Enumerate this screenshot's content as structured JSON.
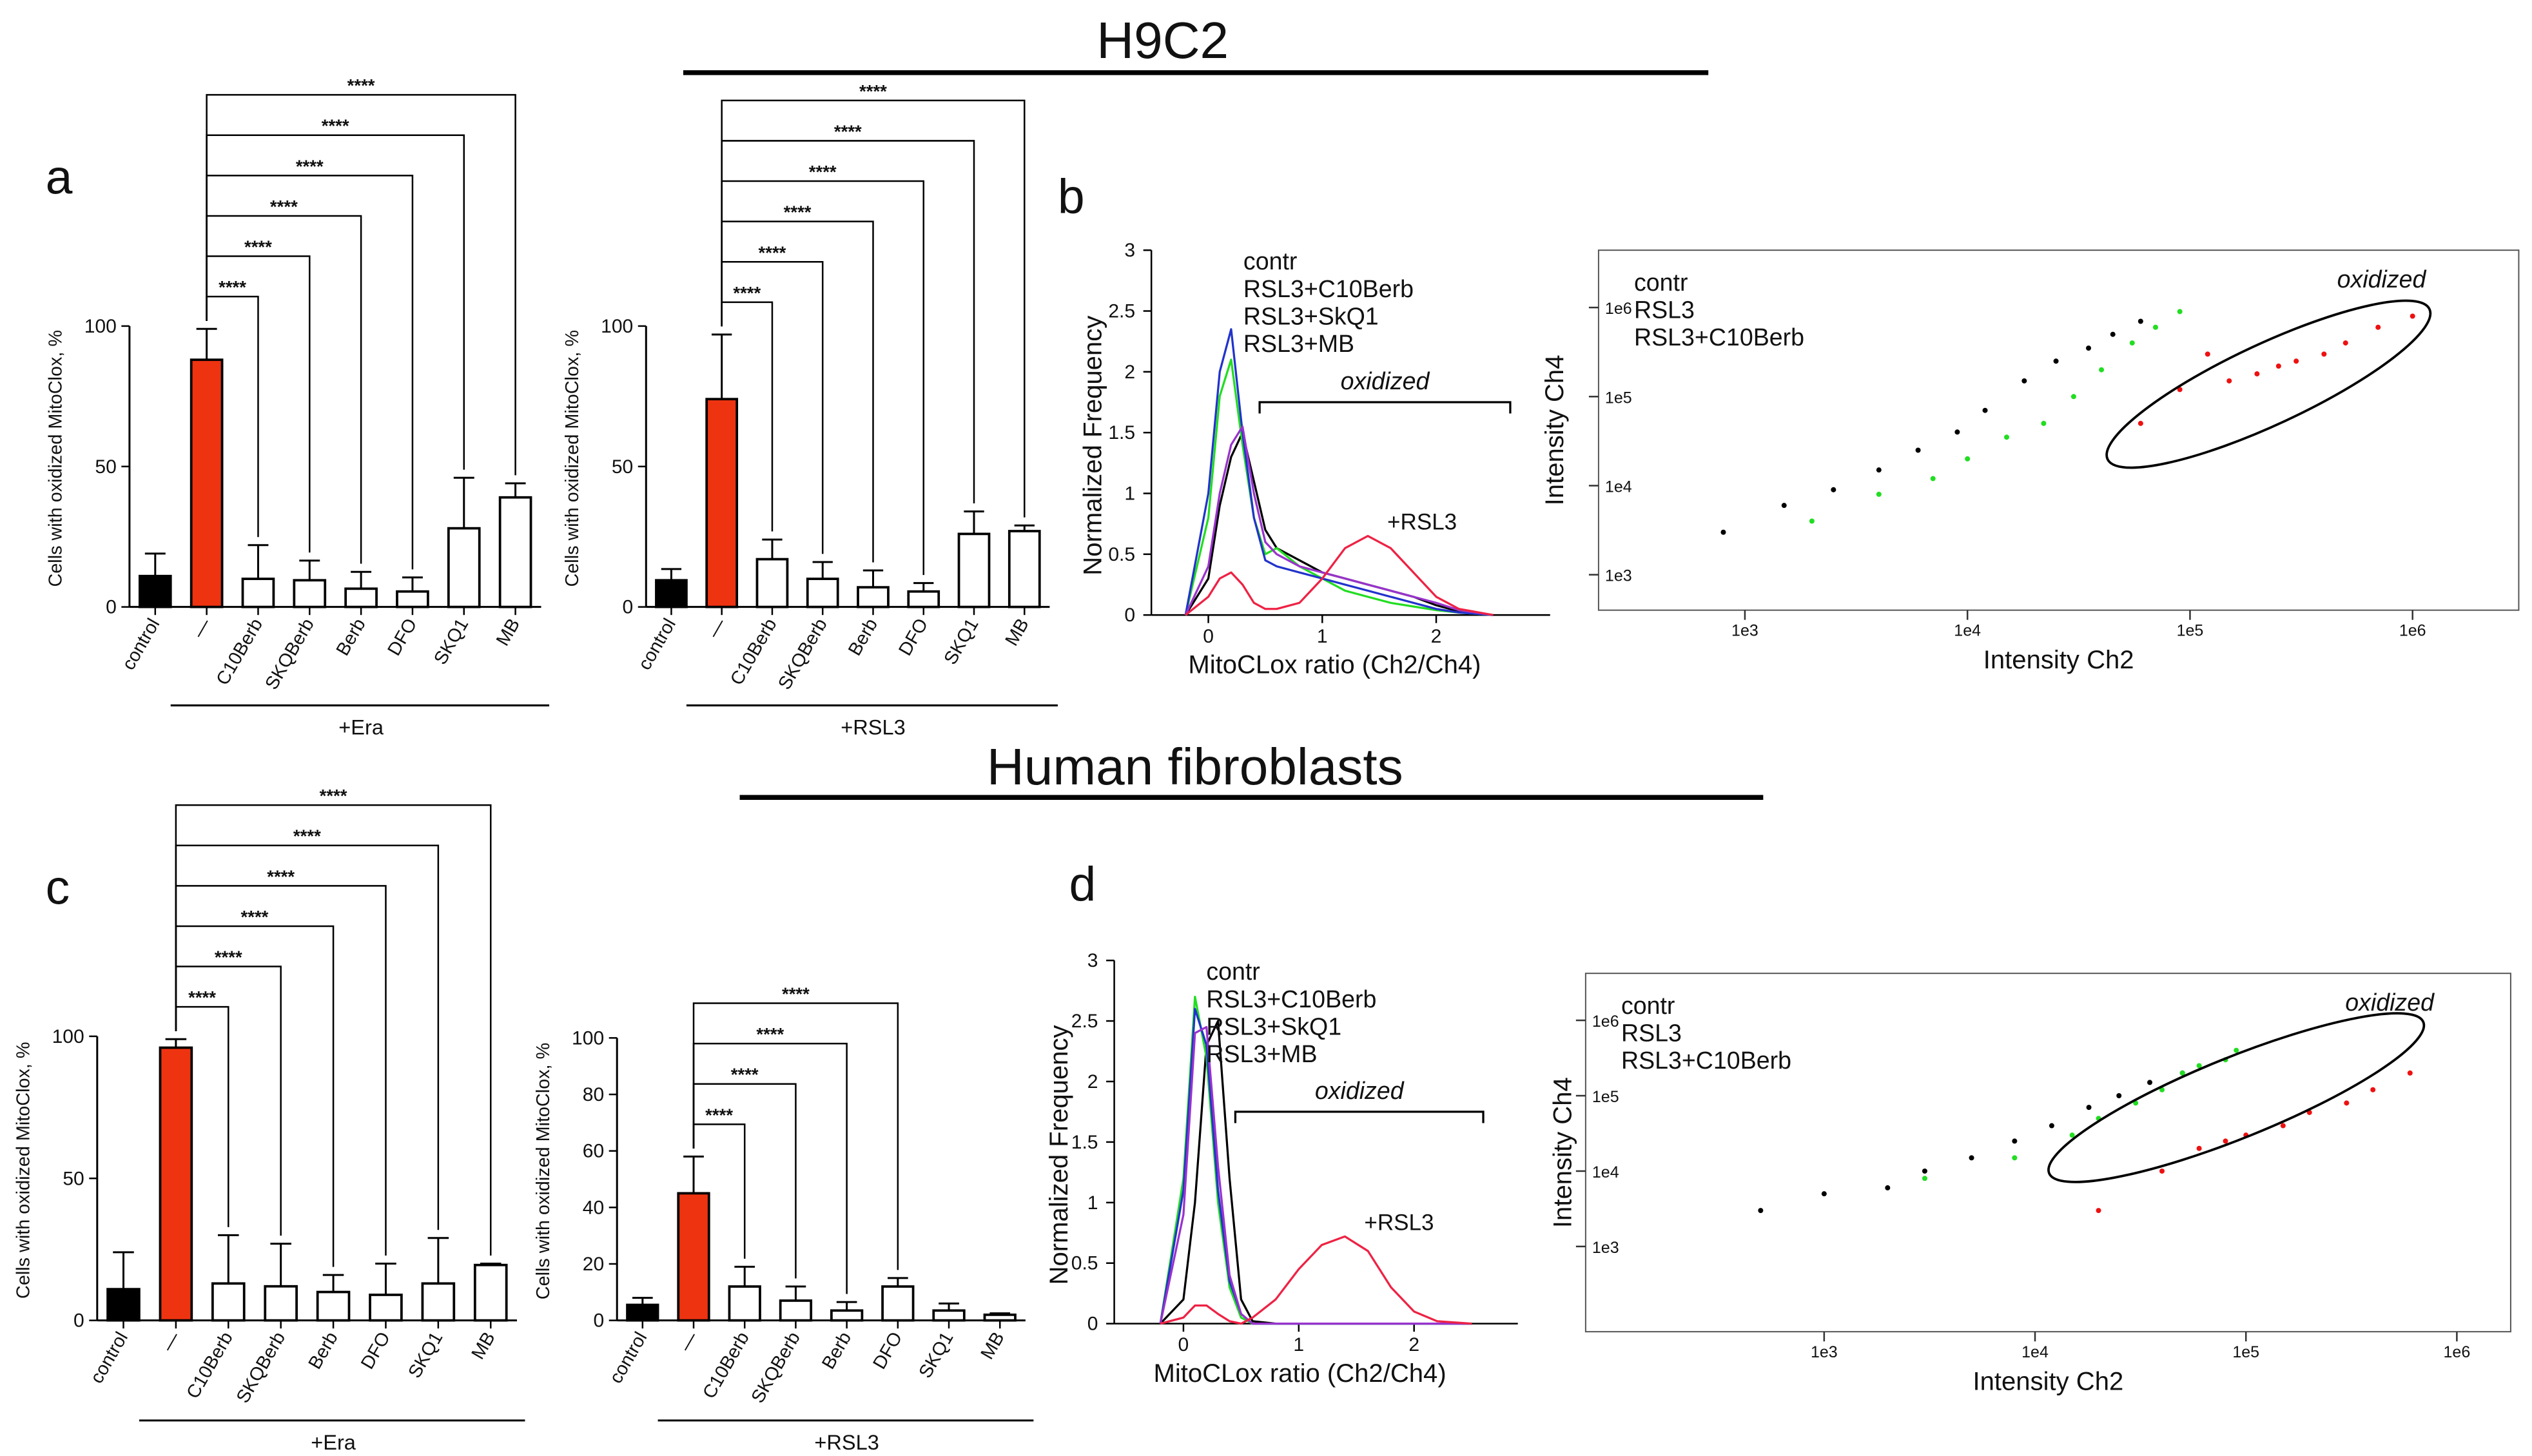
{
  "headers": [
    "H9C2",
    "Human fibroblasts"
  ],
  "panel_labels": [
    "a",
    "b",
    "c",
    "d"
  ],
  "chart_data": [
    {
      "type": "bar",
      "ylabel": "Cells with oxidized MitoClox, %",
      "categories": [
        "control",
        "—",
        "C10Berb",
        "SKQBerb",
        "Berb",
        "DFO",
        "SKQ1",
        "MB"
      ],
      "values": [
        11,
        88,
        10,
        9.5,
        6.5,
        5.5,
        28,
        39
      ],
      "errors": [
        8,
        11,
        12,
        7,
        6,
        5,
        18,
        5
      ],
      "colors": [
        "#000000",
        "#ee3311",
        "#ffffff",
        "#ffffff",
        "#ffffff",
        "#ffffff",
        "#ffffff",
        "#ffffff"
      ],
      "ylim": [
        0,
        100
      ],
      "yticks": [
        0,
        50,
        100
      ],
      "comparisons": [
        {
          "groups": [
            "—",
            "C10Berb"
          ],
          "label": "****"
        },
        {
          "groups": [
            "—",
            "SKQBerb"
          ],
          "label": "****"
        },
        {
          "groups": [
            "—",
            "Berb"
          ],
          "label": "****"
        },
        {
          "groups": [
            "—",
            "DFO"
          ],
          "label": "****"
        },
        {
          "groups": [
            "—",
            "SKQ1"
          ],
          "label": "****"
        },
        {
          "groups": [
            "—",
            "MB"
          ],
          "label": "****"
        }
      ],
      "group_label": "+Era"
    },
    {
      "type": "bar",
      "ylabel": "Cells with oxidized MitoClox, %",
      "categories": [
        "control",
        "—",
        "C10Berb",
        "SKQBerb",
        "Berb",
        "DFO",
        "SKQ1",
        "MB"
      ],
      "values": [
        9.5,
        74,
        17,
        10,
        7,
        5.5,
        26,
        27
      ],
      "errors": [
        4,
        23,
        7,
        6,
        6,
        3,
        8,
        2
      ],
      "colors": [
        "#000000",
        "#ee3311",
        "#ffffff",
        "#ffffff",
        "#ffffff",
        "#ffffff",
        "#ffffff",
        "#ffffff"
      ],
      "ylim": [
        0,
        100
      ],
      "yticks": [
        0,
        50,
        100
      ],
      "comparisons": [
        {
          "groups": [
            "—",
            "C10Berb"
          ],
          "label": "****"
        },
        {
          "groups": [
            "—",
            "SKQBerb"
          ],
          "label": "****"
        },
        {
          "groups": [
            "—",
            "Berb"
          ],
          "label": "****"
        },
        {
          "groups": [
            "—",
            "DFO"
          ],
          "label": "****"
        },
        {
          "groups": [
            "—",
            "SKQ1"
          ],
          "label": "****"
        },
        {
          "groups": [
            "—",
            "MB"
          ],
          "label": "****"
        }
      ],
      "group_label": "+RSL3"
    },
    {
      "type": "bar",
      "ylabel": "Cells with oxidized MitoClox, %",
      "categories": [
        "control",
        "—",
        "C10Berb",
        "SKQBerb",
        "Berb",
        "DFO",
        "SKQ1",
        "MB"
      ],
      "values": [
        11,
        96,
        13,
        12,
        10,
        9,
        13,
        19.5
      ],
      "errors": [
        13,
        3,
        17,
        15,
        6,
        11,
        16,
        0.5
      ],
      "colors": [
        "#000000",
        "#ee3311",
        "#ffffff",
        "#ffffff",
        "#ffffff",
        "#ffffff",
        "#ffffff",
        "#ffffff"
      ],
      "ylim": [
        0,
        100
      ],
      "yticks": [
        0,
        50,
        100
      ],
      "comparisons": [
        {
          "groups": [
            "—",
            "C10Berb"
          ],
          "label": "****"
        },
        {
          "groups": [
            "—",
            "SKQBerb"
          ],
          "label": "****"
        },
        {
          "groups": [
            "—",
            "Berb"
          ],
          "label": "****"
        },
        {
          "groups": [
            "—",
            "DFO"
          ],
          "label": "****"
        },
        {
          "groups": [
            "—",
            "SKQ1"
          ],
          "label": "****"
        },
        {
          "groups": [
            "—",
            "MB"
          ],
          "label": "****"
        }
      ],
      "group_label": "+Era"
    },
    {
      "type": "bar",
      "ylabel": "Cells with oxidized MitoClox, %",
      "categories": [
        "control",
        "—",
        "C10Berb",
        "SKQBerb",
        "Berb",
        "DFO",
        "SKQ1",
        "MB"
      ],
      "values": [
        5.5,
        45,
        12,
        7,
        3.5,
        12,
        3.5,
        2
      ],
      "errors": [
        2.5,
        13,
        7,
        5,
        3,
        3,
        2.5,
        0.5
      ],
      "colors": [
        "#000000",
        "#ee3311",
        "#ffffff",
        "#ffffff",
        "#ffffff",
        "#ffffff",
        "#ffffff",
        "#ffffff"
      ],
      "ylim": [
        0,
        100
      ],
      "yticks": [
        0,
        20,
        40,
        60,
        80,
        100
      ],
      "comparisons": [
        {
          "groups": [
            "—",
            "C10Berb"
          ],
          "label": "****"
        },
        {
          "groups": [
            "—",
            "SKQBerb"
          ],
          "label": "****"
        },
        {
          "groups": [
            "—",
            "Berb"
          ],
          "label": "****"
        },
        {
          "groups": [
            "—",
            "DFO"
          ],
          "label": "****"
        }
      ],
      "group_label": "+RSL3"
    },
    {
      "type": "line",
      "xlabel": "MitoCLox ratio (Ch2/Ch4)",
      "ylabel": "Normalized Frequency",
      "x": [
        -0.2,
        0,
        0.1,
        0.2,
        0.3,
        0.4,
        0.5,
        0.6,
        0.8,
        1.0,
        1.2,
        1.4,
        1.6,
        1.8,
        2.0,
        2.2,
        2.5
      ],
      "series": [
        {
          "name": "contr",
          "color": "#000000",
          "values": [
            0,
            0.3,
            0.9,
            1.3,
            1.5,
            1.1,
            0.7,
            0.55,
            0.45,
            0.35,
            0.3,
            0.25,
            0.2,
            0.15,
            0.08,
            0.03,
            0
          ]
        },
        {
          "name": "RSL3+C10Berb",
          "color": "#22dd22",
          "values": [
            0,
            0.8,
            1.8,
            2.1,
            1.4,
            0.8,
            0.5,
            0.55,
            0.4,
            0.3,
            0.2,
            0.15,
            0.1,
            0.07,
            0.04,
            0.02,
            0
          ]
        },
        {
          "name": "RSL3+SkQ1",
          "color": "#2233cc",
          "values": [
            0,
            1.0,
            2.0,
            2.35,
            1.5,
            0.8,
            0.45,
            0.4,
            0.35,
            0.3,
            0.25,
            0.2,
            0.15,
            0.1,
            0.05,
            0.02,
            0
          ]
        },
        {
          "name": "RSL3+MB",
          "color": "#9933cc",
          "values": [
            0,
            0.4,
            1.0,
            1.4,
            1.55,
            1.0,
            0.6,
            0.5,
            0.4,
            0.35,
            0.3,
            0.25,
            0.2,
            0.15,
            0.1,
            0.04,
            0
          ]
        },
        {
          "name": "+RSL3",
          "color": "#ee2244",
          "direct_label": true,
          "values": [
            0,
            0.15,
            0.3,
            0.35,
            0.25,
            0.1,
            0.05,
            0.05,
            0.1,
            0.3,
            0.55,
            0.65,
            0.55,
            0.35,
            0.15,
            0.05,
            0
          ]
        }
      ],
      "xlim": [
        -0.5,
        3.0
      ],
      "ylim": [
        0,
        3
      ],
      "xticks": [
        0,
        1,
        2
      ],
      "yticks": [
        0,
        0.5,
        1,
        1.5,
        2,
        2.5,
        3
      ],
      "annotation": {
        "text": "oxidized",
        "xrange": [
          0.45,
          2.65
        ]
      }
    },
    {
      "type": "scatter",
      "xlabel": "Intensity Ch2",
      "ylabel": "Intensity Ch4",
      "xlog": true,
      "ylog": true,
      "series": [
        {
          "name": "contr",
          "color": "#000000",
          "x": [
            800,
            1500,
            2500,
            4000,
            6000,
            9000,
            12000,
            18000,
            25000,
            35000,
            45000,
            60000
          ],
          "values": [
            3000,
            6000,
            9000,
            15000,
            25000,
            40000,
            70000,
            150000,
            250000,
            350000,
            500000,
            700000
          ]
        },
        {
          "name": "RSL3",
          "color": "#ee1111",
          "x": [
            60000,
            90000,
            120000,
            150000,
            200000,
            250000,
            300000,
            400000,
            500000,
            700000,
            1000000
          ],
          "values": [
            50000,
            120000,
            300000,
            150000,
            180000,
            220000,
            250000,
            300000,
            400000,
            600000,
            800000
          ]
        },
        {
          "name": "RSL3+C10Berb",
          "color": "#22dd22",
          "x": [
            2000,
            4000,
            7000,
            10000,
            15000,
            22000,
            30000,
            40000,
            55000,
            70000,
            90000
          ],
          "values": [
            4000,
            8000,
            12000,
            20000,
            35000,
            50000,
            100000,
            200000,
            400000,
            600000,
            900000
          ]
        }
      ],
      "xlim": [
        220,
        3000000
      ],
      "ylim": [
        400,
        4400000
      ],
      "xticks": [
        {
          "value": 1000,
          "label": "1e3"
        },
        {
          "value": 10000,
          "label": "1e4"
        },
        {
          "value": 100000,
          "label": "1e5"
        },
        {
          "value": 1000000,
          "label": "1e6"
        }
      ],
      "yticks": [
        {
          "value": 1000,
          "label": "1e3"
        },
        {
          "value": 10000,
          "label": "1e4"
        },
        {
          "value": 100000,
          "label": "1e5"
        },
        {
          "value": 1000000,
          "label": "1e6"
        }
      ],
      "gate_label": "oxidized"
    },
    {
      "type": "line",
      "xlabel": "MitoCLox ratio (Ch2/Ch4)",
      "ylabel": "Normalized Frequency",
      "x": [
        -0.2,
        0,
        0.1,
        0.2,
        0.3,
        0.4,
        0.5,
        0.6,
        0.8,
        1.0,
        1.2,
        1.4,
        1.6,
        1.8,
        2.0,
        2.2,
        2.5
      ],
      "series": [
        {
          "name": "contr",
          "color": "#000000",
          "values": [
            0,
            0.2,
            1.0,
            2.3,
            2.5,
            1.2,
            0.2,
            0.02,
            0,
            0,
            0,
            0,
            0,
            0,
            0,
            0,
            0
          ]
        },
        {
          "name": "RSL3+C10Berb",
          "color": "#22dd22",
          "values": [
            0,
            1.2,
            2.7,
            2.2,
            1.0,
            0.3,
            0.05,
            0,
            0,
            0,
            0,
            0,
            0,
            0,
            0,
            0,
            0
          ]
        },
        {
          "name": "RSL3+SkQ1",
          "color": "#2233cc",
          "values": [
            0,
            1.1,
            2.6,
            2.3,
            1.1,
            0.35,
            0.08,
            0,
            0,
            0,
            0,
            0,
            0,
            0,
            0,
            0,
            0
          ]
        },
        {
          "name": "RSL3+MB",
          "color": "#9933cc",
          "values": [
            0,
            0.9,
            2.4,
            2.45,
            1.3,
            0.4,
            0.08,
            0,
            0,
            0,
            0,
            0,
            0,
            0,
            0,
            0,
            0
          ]
        },
        {
          "name": "+RSL3",
          "color": "#ee2244",
          "direct_label": true,
          "values": [
            0,
            0.05,
            0.15,
            0.15,
            0.08,
            0.02,
            0,
            0.05,
            0.2,
            0.45,
            0.65,
            0.72,
            0.6,
            0.3,
            0.1,
            0.02,
            0
          ]
        }
      ],
      "xlim": [
        -0.6,
        2.9
      ],
      "ylim": [
        0,
        3
      ],
      "xticks": [
        0,
        1,
        2
      ],
      "yticks": [
        0,
        0.5,
        1,
        1.5,
        2,
        2.5,
        3
      ],
      "annotation": {
        "text": "oxidized",
        "xrange": [
          0.45,
          2.6
        ]
      }
    },
    {
      "type": "scatter",
      "xlabel": "Intensity Ch2",
      "ylabel": "Intensity Ch4",
      "xlog": true,
      "ylog": true,
      "series": [
        {
          "name": "contr",
          "color": "#000000",
          "x": [
            500,
            1000,
            2000,
            3000,
            5000,
            8000,
            12000,
            18000,
            25000,
            35000,
            50000
          ],
          "values": [
            3000,
            5000,
            6000,
            10000,
            15000,
            25000,
            40000,
            70000,
            100000,
            150000,
            200000
          ]
        },
        {
          "name": "RSL3",
          "color": "#ee1111",
          "x": [
            20000,
            40000,
            60000,
            80000,
            100000,
            150000,
            200000,
            300000,
            400000,
            600000
          ],
          "values": [
            3000,
            10000,
            20000,
            25000,
            30000,
            40000,
            60000,
            80000,
            120000,
            200000
          ]
        },
        {
          "name": "RSL3+C10Berb",
          "color": "#22dd22",
          "x": [
            3000,
            8000,
            15000,
            20000,
            30000,
            40000,
            50000,
            60000,
            80000,
            90000
          ],
          "values": [
            8000,
            15000,
            30000,
            50000,
            80000,
            120000,
            200000,
            250000,
            300000,
            400000
          ]
        }
      ],
      "xlim": [
        74,
        1800000
      ],
      "ylim": [
        74,
        4200000
      ],
      "xticks": [
        {
          "value": 1000,
          "label": "1e3"
        },
        {
          "value": 10000,
          "label": "1e4"
        },
        {
          "value": 100000,
          "label": "1e5"
        },
        {
          "value": 1000000,
          "label": "1e6"
        }
      ],
      "yticks": [
        {
          "value": 1000,
          "label": "1e3"
        },
        {
          "value": 10000,
          "label": "1e4"
        },
        {
          "value": 100000,
          "label": "1e5"
        },
        {
          "value": 1000000,
          "label": "1e6"
        }
      ],
      "gate_label": "oxidized"
    }
  ]
}
